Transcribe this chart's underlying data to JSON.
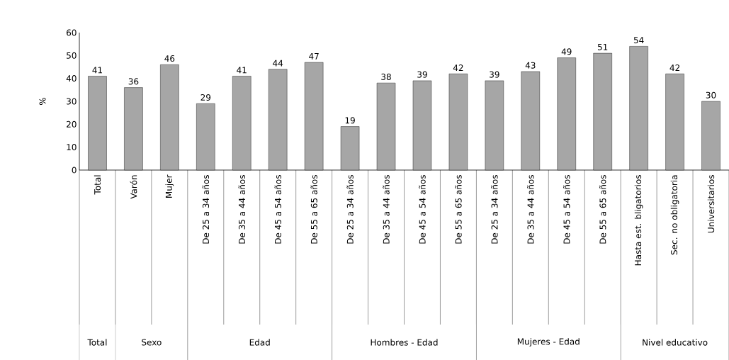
{
  "chart_data": {
    "type": "bar",
    "ylabel": "%",
    "categories": [
      "Total",
      "Varón",
      "Mujer",
      "De 25 a 34 años",
      "De 35 a 44 años",
      "De 45 a 54 años",
      "De 55 a 65 años",
      "De 25 a 34 años",
      "De 35 a 44 años",
      "De 45 a 54 años",
      "De 55 a 65 años",
      "De 25 a 34 años",
      "De 35 a 44 años",
      "De 45 a 54 años",
      "De 55 a 65 años",
      "Hasta est. bligatorios",
      "Sec. no obligatoria",
      "Universitarios"
    ],
    "values": [
      41,
      36,
      46,
      29,
      41,
      44,
      47,
      19,
      38,
      39,
      42,
      39,
      43,
      49,
      51,
      54,
      42,
      30
    ],
    "color": "#a6a6a6",
    "data_labels": true,
    "ylim": [
      0,
      60
    ],
    "yticks": [
      0,
      10,
      20,
      30,
      40,
      50,
      60
    ],
    "grid": false,
    "annotations": [
      "Total",
      "Sexo",
      "Edad",
      "Hombres - Edad",
      "Mujeres - Edad",
      "Nivel educativo"
    ]
  }
}
